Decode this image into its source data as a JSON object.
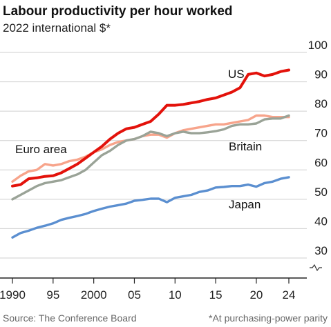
{
  "chart_data": {
    "type": "line",
    "title": "Labour productivity per hour worked",
    "subtitle": "2022 international $*",
    "source": "Source: The Conference Board",
    "footnote": "*At purchasing-power parity",
    "x_range": [
      1990,
      2024
    ],
    "y_range": [
      30,
      100
    ],
    "y_axis_position": "right",
    "y_ticks": [
      30,
      40,
      50,
      60,
      70,
      80,
      90,
      100
    ],
    "y_axis_break": true,
    "x_ticks": [
      {
        "value": 1990,
        "label": "1990"
      },
      {
        "value": 1995,
        "label": "95"
      },
      {
        "value": 2000,
        "label": "2000"
      },
      {
        "value": 2005,
        "label": "05"
      },
      {
        "value": 2010,
        "label": "10"
      },
      {
        "value": 2015,
        "label": "15"
      },
      {
        "value": 2020,
        "label": "20"
      },
      {
        "value": 2024,
        "label": "24"
      }
    ],
    "grid": "horizontal",
    "x": [
      1990,
      1991,
      1992,
      1993,
      1994,
      1995,
      1996,
      1997,
      1998,
      1999,
      2000,
      2001,
      2002,
      2003,
      2004,
      2005,
      2006,
      2007,
      2008,
      2009,
      2010,
      2011,
      2012,
      2013,
      2014,
      2015,
      2016,
      2017,
      2018,
      2019,
      2020,
      2021,
      2022,
      2023,
      2024
    ],
    "series": [
      {
        "name": "US",
        "color": "#e3120b",
        "values": [
          54.5,
          55.0,
          57.0,
          57.3,
          57.8,
          58.0,
          59.0,
          60.5,
          62.0,
          64.0,
          66.0,
          68.0,
          70.5,
          72.5,
          74.0,
          74.5,
          75.5,
          76.5,
          79.0,
          82.0,
          82.0,
          82.3,
          82.8,
          83.3,
          84.0,
          84.5,
          85.5,
          86.5,
          88.0,
          92.5,
          93.0,
          92.0,
          92.5,
          93.5,
          94.0
        ]
      },
      {
        "name": "Euro area",
        "color": "#f7a48b",
        "values": [
          56.0,
          58.0,
          59.5,
          60.0,
          62.0,
          61.5,
          62.0,
          63.0,
          63.5,
          64.5,
          66.0,
          67.0,
          68.5,
          69.5,
          70.0,
          70.5,
          71.5,
          72.0,
          72.0,
          71.0,
          72.5,
          73.5,
          74.0,
          74.5,
          75.0,
          75.5,
          75.5,
          76.0,
          76.5,
          77.0,
          78.5,
          78.5,
          78.0,
          78.0,
          78.0
        ]
      },
      {
        "name": "Britain",
        "color": "#9aa397",
        "values": [
          50.0,
          51.5,
          53.0,
          54.5,
          55.5,
          56.0,
          56.5,
          57.5,
          58.5,
          60.0,
          62.5,
          65.0,
          66.5,
          68.5,
          70.0,
          70.5,
          71.5,
          73.0,
          72.5,
          71.5,
          72.5,
          73.0,
          72.5,
          72.5,
          72.8,
          73.2,
          73.8,
          75.0,
          75.5,
          75.5,
          75.8,
          77.2,
          77.5,
          77.5,
          78.5
        ]
      },
      {
        "name": "Japan",
        "color": "#5b8fd0",
        "values": [
          37.0,
          38.5,
          39.3,
          40.3,
          41.0,
          41.8,
          43.0,
          43.7,
          44.3,
          45.0,
          46.0,
          46.8,
          47.5,
          48.0,
          48.5,
          49.5,
          49.8,
          50.2,
          50.2,
          49.0,
          50.5,
          51.0,
          51.5,
          52.5,
          53.0,
          54.0,
          54.2,
          54.5,
          54.5,
          55.0,
          54.3,
          55.5,
          56.0,
          57.0,
          57.5
        ]
      }
    ]
  }
}
